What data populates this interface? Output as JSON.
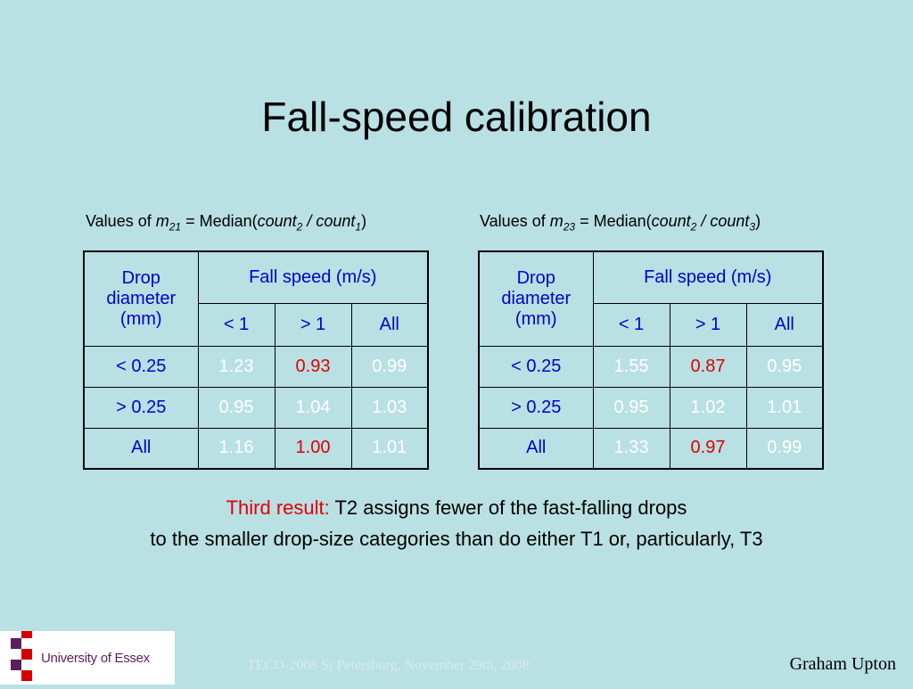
{
  "title": "Fall-speed calibration",
  "left_caption": {
    "prefix": "Values of ",
    "var": "m",
    "sub": "21",
    "eq": " = Median(",
    "num": "count",
    "num_sub": "2",
    "slash": " / ",
    "den": "count",
    "den_sub": "1",
    "close": ")"
  },
  "right_caption": {
    "prefix": "Values of ",
    "var": "m",
    "sub": "23",
    "eq": " = Median(",
    "num": "count",
    "num_sub": "2",
    "slash": " / ",
    "den": "count",
    "den_sub": "3",
    "close": ")"
  },
  "table_headers": {
    "drop": "Drop diameter (mm)",
    "fall": "Fall speed (m/s)",
    "lt1": "< 1",
    "gt1": "> 1",
    "all": "All"
  },
  "left_table": {
    "rows": [
      {
        "label": "< 0.25",
        "lt1": "1.23",
        "gt1": "0.93",
        "all": "0.99"
      },
      {
        "label": "> 0.25",
        "lt1": "0.95",
        "gt1": "1.04",
        "all": "1.03"
      },
      {
        "label": "All",
        "lt1": "1.16",
        "gt1": "1.00",
        "all": "1.01"
      }
    ]
  },
  "right_table": {
    "rows": [
      {
        "label": "< 0.25",
        "lt1": "1.55",
        "gt1": "0.87",
        "all": "0.95"
      },
      {
        "label": "> 0.25",
        "lt1": "0.95",
        "gt1": "1.02",
        "all": "1.01"
      },
      {
        "label": "All",
        "lt1": "1.33",
        "gt1": "0.97",
        "all": "0.99"
      }
    ]
  },
  "result": {
    "label": "Third result:",
    "line1": " T2 assigns fewer of the fast-falling drops",
    "line2": "to the smaller drop-size categories than do either T1 or, particularly, T3"
  },
  "footer": {
    "logo_text": "University of Essex",
    "conference": "TECO-2008 St Petersburg, November 29th, 2008",
    "author": "Graham Upton"
  },
  "colors": {
    "background": "#b9e0e3",
    "header_blue": "#0000cc",
    "highlight_red": "#e00000",
    "logo_purple": "#5b1f5e",
    "logo_red": "#d40000"
  }
}
